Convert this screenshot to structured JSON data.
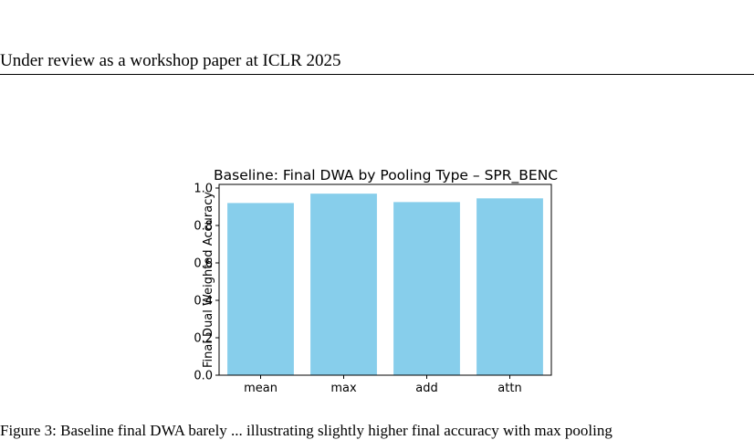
{
  "header": {
    "text": "Under review as a workshop paper at ICLR 2025"
  },
  "figure": {
    "caption": "Figure 3: Baseline final DWA barely ... illustrating slightly higher final accuracy with max pooling"
  },
  "chart_data": {
    "type": "bar",
    "title": "Baseline: Final DWA by Pooling Type – SPR_BENC",
    "xlabel": "",
    "ylabel": "Final Dual Weighted Accuracy",
    "categories": [
      "mean",
      "max",
      "add",
      "attn"
    ],
    "values": [
      0.92,
      0.97,
      0.925,
      0.945
    ],
    "ylim": [
      0,
      1.0
    ],
    "yticks": [
      0.0,
      0.2,
      0.4,
      0.6,
      0.8,
      1.0
    ],
    "ytick_labels": [
      "0.0",
      "0.2",
      "0.4",
      "0.6",
      "0.8",
      "1.0"
    ],
    "bar_color": "#87ceeb",
    "grid": false,
    "legend": "none"
  }
}
